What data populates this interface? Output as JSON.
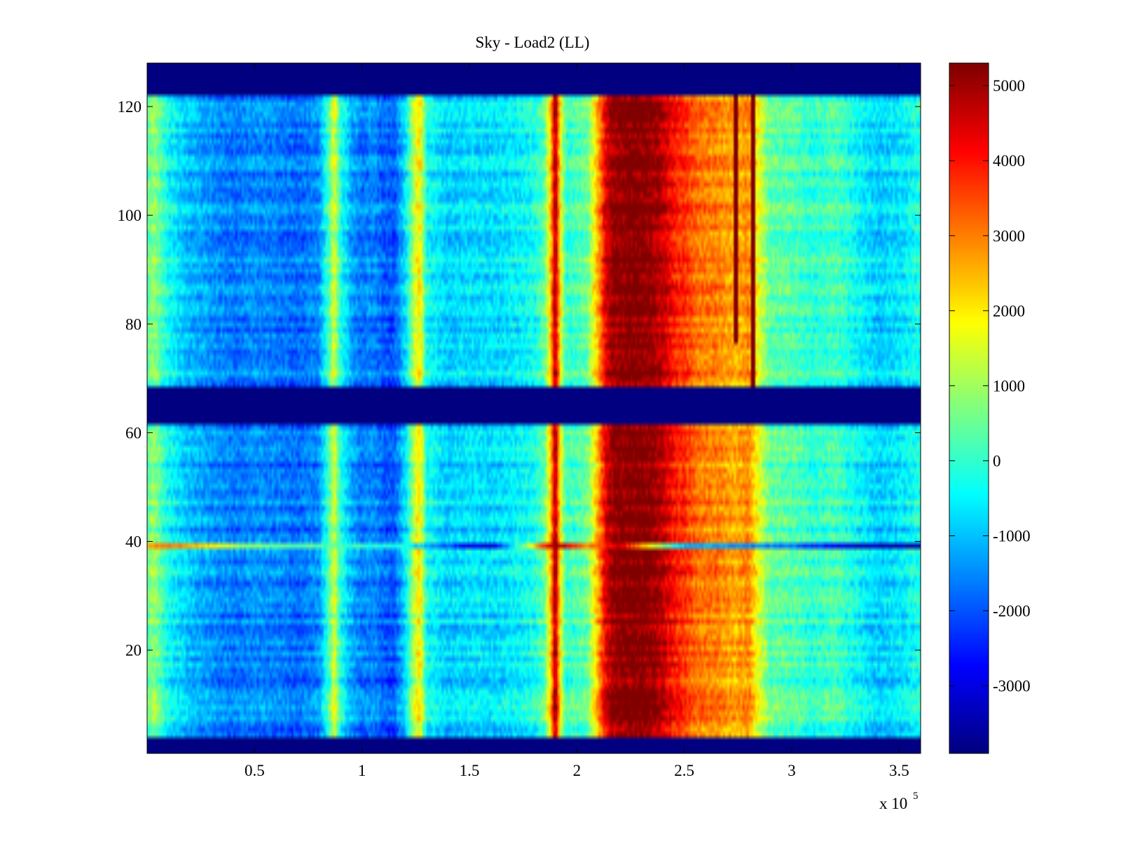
{
  "chart_data": {
    "type": "heatmap",
    "title": "Sky - Load2 (LL)",
    "xlabel": "",
    "ylabel": "",
    "x_multiplier_label": "x 10",
    "x_multiplier_exponent": "5",
    "xlim": [
      0,
      3.6
    ],
    "ylim": [
      1,
      128
    ],
    "xticks": [
      0.5,
      1,
      1.5,
      2,
      2.5,
      3,
      3.5
    ],
    "xtick_labels": [
      "0.5",
      "1",
      "1.5",
      "2",
      "2.5",
      "3",
      "3.5"
    ],
    "yticks": [
      20,
      40,
      60,
      80,
      100,
      120
    ],
    "ytick_labels": [
      "20",
      "40",
      "60",
      "80",
      "100",
      "120"
    ],
    "colorbar": {
      "colormap": "jet",
      "range": [
        -3900,
        5300
      ],
      "ticks": [
        -3000,
        -2000,
        -1000,
        0,
        1000,
        2000,
        3000,
        4000,
        5000
      ],
      "tick_labels": [
        "-3000",
        "-2000",
        "-1000",
        "0",
        "1000",
        "2000",
        "3000",
        "4000",
        "5000"
      ]
    },
    "masked_row_bands": [
      {
        "y_from": 1,
        "y_to": 4,
        "value": -3900
      },
      {
        "y_from": 62,
        "y_to": 68,
        "value": -3900
      },
      {
        "y_from": 122,
        "y_to": 128,
        "value": -3900
      }
    ],
    "column_profile": {
      "x": [
        0,
        0.03,
        0.1,
        0.2,
        0.3,
        0.4,
        0.5,
        0.6,
        0.7,
        0.8,
        0.85,
        0.87,
        0.9,
        0.95,
        1.0,
        1.05,
        1.1,
        1.15,
        1.2,
        1.25,
        1.27,
        1.3,
        1.4,
        1.5,
        1.6,
        1.7,
        1.8,
        1.85,
        1.88,
        1.9,
        1.92,
        1.95,
        2.0,
        2.05,
        2.08,
        2.1,
        2.13,
        2.16,
        2.2,
        2.25,
        2.3,
        2.35,
        2.4,
        2.45,
        2.5,
        2.55,
        2.6,
        2.65,
        2.7,
        2.75,
        2.8,
        2.85,
        2.9,
        3.0,
        3.1,
        3.2,
        3.3,
        3.4,
        3.5,
        3.6
      ],
      "values": [
        300,
        900,
        -400,
        -1100,
        -1400,
        -1700,
        -1500,
        -1600,
        -1800,
        -1500,
        400,
        1600,
        -200,
        -1200,
        -1700,
        -1500,
        -1900,
        -2000,
        -800,
        1600,
        2000,
        -300,
        -900,
        -700,
        -800,
        -600,
        -300,
        400,
        2500,
        5300,
        2000,
        0,
        200,
        500,
        1800,
        2600,
        4200,
        5000,
        5200,
        5300,
        5300,
        5100,
        4700,
        4000,
        3700,
        3200,
        3000,
        3000,
        2700,
        2600,
        2900,
        1500,
        400,
        300,
        -100,
        200,
        -400,
        -900,
        -700,
        -200
      ]
    },
    "highlighted_rows": [
      {
        "y": 39,
        "x": [
          0,
          0.1,
          0.3,
          0.5,
          0.9,
          1.2,
          1.5,
          1.6,
          1.7,
          1.9,
          2.05,
          2.2,
          2.5,
          3.0,
          3.3,
          3.6
        ],
        "values": [
          2800,
          3300,
          2000,
          600,
          200,
          -300,
          -3000,
          -3300,
          -800,
          5300,
          3000,
          4500,
          -1000,
          -1800,
          -3300,
          -3500
        ]
      }
    ],
    "point_sources": [
      {
        "x": 2.74,
        "y_from": 76,
        "y_to": 122,
        "value": 5300
      },
      {
        "x": 2.82,
        "y_from": 68,
        "y_to": 122,
        "value": 5300
      }
    ]
  }
}
